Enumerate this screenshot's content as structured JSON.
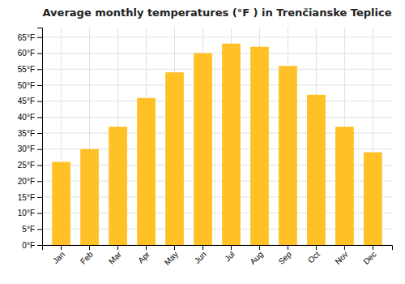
{
  "chart_data": {
    "type": "bar",
    "title": "Average monthly temperatures (°F ) in Trenčianske Teplice",
    "categories": [
      "Jan",
      "Feb",
      "Mar",
      "Apr",
      "May",
      "Jun",
      "Jul",
      "Aug",
      "Sep",
      "Oct",
      "Nov",
      "Dec"
    ],
    "values": [
      26,
      30,
      37,
      46,
      54,
      60,
      63,
      62,
      56,
      47,
      37,
      29
    ],
    "color": "#FFC125",
    "ylim": [
      0,
      68
    ],
    "yticks": [
      {
        "value": 0,
        "label": "0°F"
      },
      {
        "value": 5,
        "label": "5°F"
      },
      {
        "value": 10,
        "label": "10°F"
      },
      {
        "value": 15,
        "label": "15°F"
      },
      {
        "value": 20,
        "label": "20°F"
      },
      {
        "value": 25,
        "label": "25°F"
      },
      {
        "value": 30,
        "label": "30°F"
      },
      {
        "value": 35,
        "label": "35°F"
      },
      {
        "value": 40,
        "label": "40°F"
      },
      {
        "value": 45,
        "label": "45°F"
      },
      {
        "value": 50,
        "label": "50°F"
      },
      {
        "value": 55,
        "label": "55°F"
      },
      {
        "value": 60,
        "label": "60°F"
      },
      {
        "value": 65,
        "label": "65°F"
      }
    ],
    "grid": true
  }
}
